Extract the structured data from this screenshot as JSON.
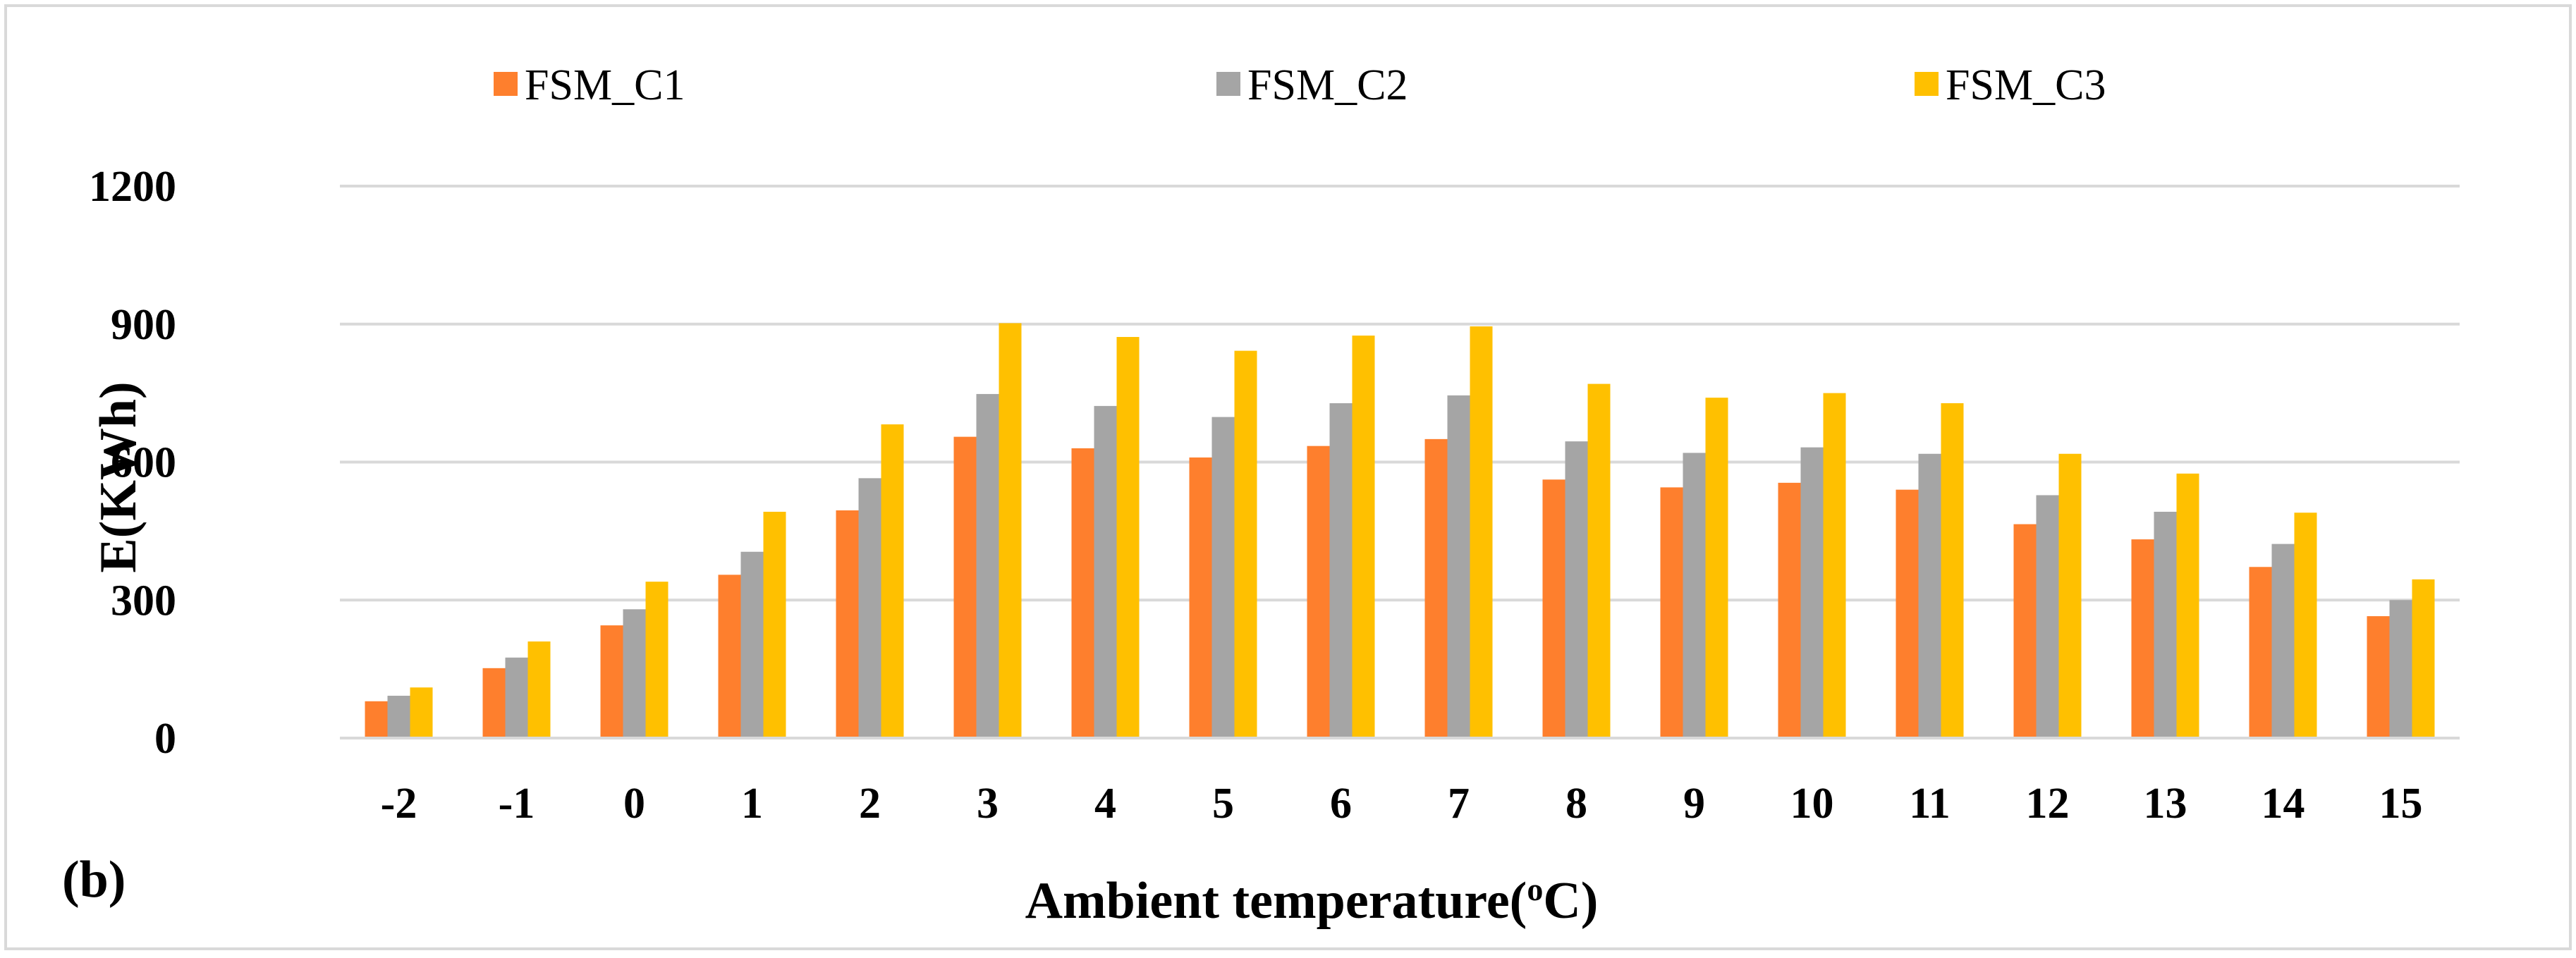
{
  "panel_label": "(b)",
  "chart_data": {
    "type": "bar",
    "title": "",
    "xlabel": "Ambient temperature(",
    "xlabel_superscript": "o",
    "xlabel_suffix": "C)",
    "ylabel": "E(KWh)",
    "ylim": [
      0,
      1200
    ],
    "yticks": [
      "0",
      "300",
      "600",
      "900",
      "1200"
    ],
    "grid": true,
    "legend_position": "top",
    "categories": [
      "-2",
      "-1",
      "0",
      "1",
      "2",
      "3",
      "4",
      "5",
      "6",
      "7",
      "8",
      "9",
      "10",
      "11",
      "12",
      "13",
      "14",
      "15"
    ],
    "series": [
      {
        "name": "FSM_C1",
        "color": "#fe7f2d",
        "values": [
          80,
          152,
          245,
          355,
          495,
          655,
          630,
          610,
          635,
          650,
          562,
          545,
          555,
          540,
          465,
          432,
          372,
          265
        ]
      },
      {
        "name": "FSM_C2",
        "color": "#a5a5a5",
        "values": [
          92,
          175,
          280,
          405,
          565,
          748,
          722,
          698,
          728,
          745,
          645,
          620,
          632,
          618,
          528,
          492,
          422,
          300
        ]
      },
      {
        "name": "FSM_C3",
        "color": "#ffc000",
        "values": [
          110,
          210,
          340,
          492,
          682,
          902,
          872,
          842,
          875,
          895,
          770,
          740,
          750,
          728,
          618,
          575,
          490,
          345
        ]
      }
    ]
  }
}
